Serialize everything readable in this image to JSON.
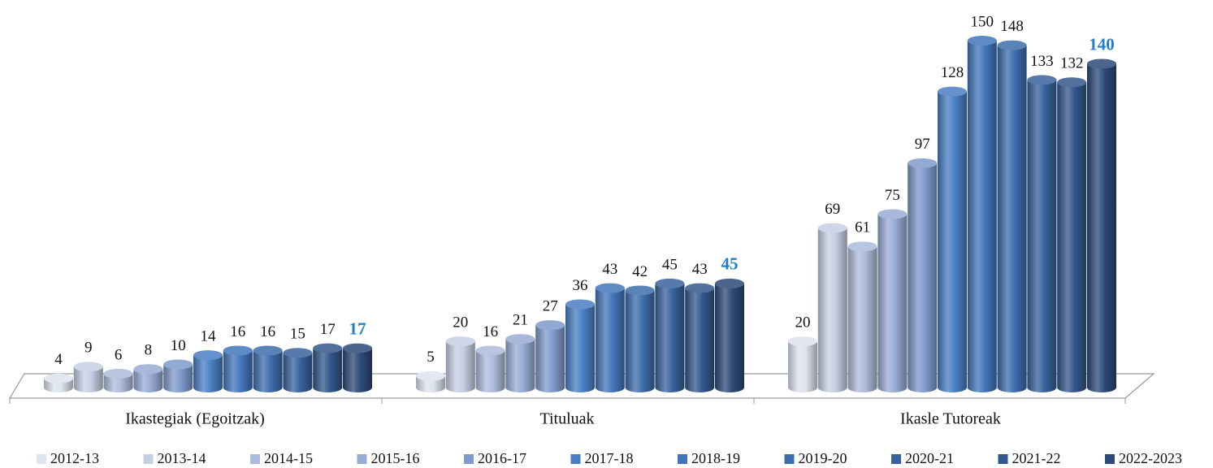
{
  "chart_data": {
    "type": "bar3d",
    "categories": [
      "Ikastegiak (Egoitzak)",
      "Tituluak",
      "Ikasle Tutoreak"
    ],
    "series": [
      {
        "name": "2012-13",
        "color": "#dde3ef",
        "values": [
          4,
          5,
          20
        ]
      },
      {
        "name": "2013-14",
        "color": "#c5cfe4",
        "values": [
          9,
          20,
          69
        ]
      },
      {
        "name": "2014-15",
        "color": "#adbcdb",
        "values": [
          6,
          16,
          61
        ]
      },
      {
        "name": "2015-16",
        "color": "#97acd4",
        "values": [
          8,
          21,
          75
        ]
      },
      {
        "name": "2016-17",
        "color": "#7f9acb",
        "values": [
          10,
          27,
          97
        ]
      },
      {
        "name": "2017-18",
        "color": "#4a7fc4",
        "values": [
          14,
          36,
          128
        ]
      },
      {
        "name": "2018-19",
        "color": "#4276ba",
        "values": [
          16,
          43,
          150
        ]
      },
      {
        "name": "2019-20",
        "color": "#3d6dac",
        "values": [
          16,
          42,
          148
        ]
      },
      {
        "name": "2020-21",
        "color": "#38629c",
        "values": [
          15,
          45,
          133
        ]
      },
      {
        "name": "2021-22",
        "color": "#33578b",
        "values": [
          17,
          43,
          132
        ]
      },
      {
        "name": "2022-2023",
        "color": "#2c4a78",
        "label_color": "#1f7fc9",
        "values": [
          17,
          45,
          140
        ]
      }
    ],
    "legend": "bottom"
  }
}
